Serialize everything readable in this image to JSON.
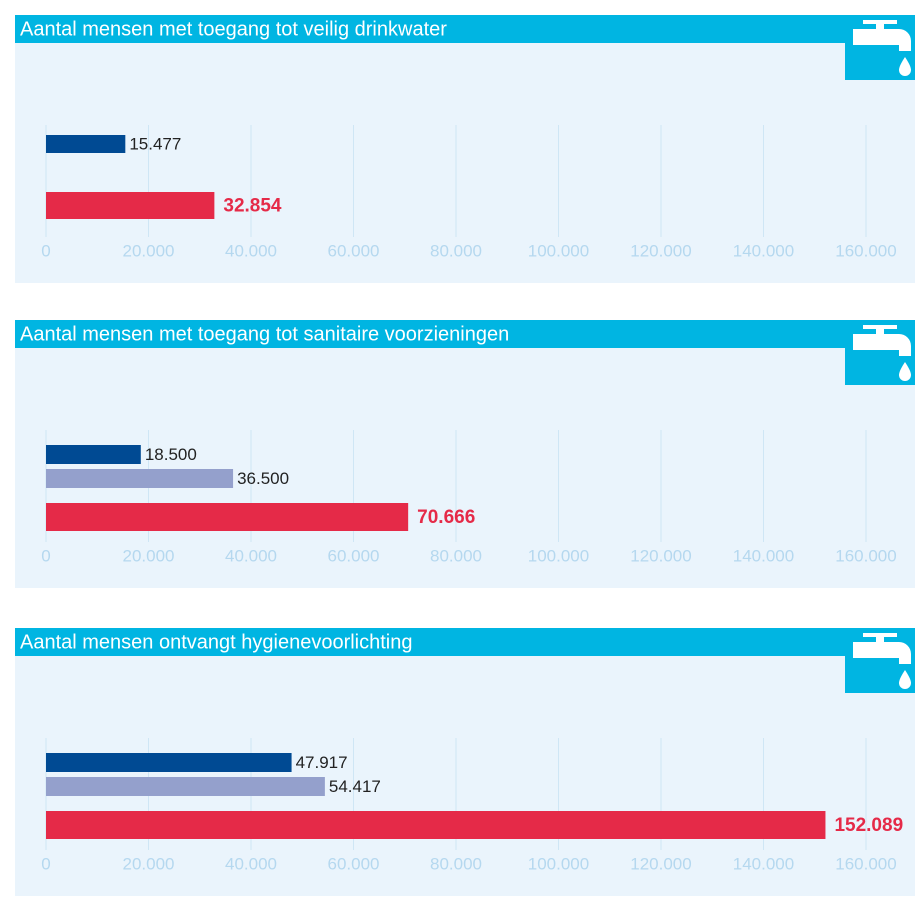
{
  "chart_data": [
    {
      "type": "bar",
      "orientation": "horizontal",
      "title": "Aantal mensen met toegang tot veilig drinkwater",
      "values": [
        15477,
        32854
      ],
      "value_labels": [
        "15.477",
        "32.854"
      ],
      "colors": [
        "#004a93",
        "#e52a48"
      ],
      "xlim": [
        0,
        160000
      ],
      "xticks": [
        0,
        {
          "value": 20000,
          "label": "20.000"
        },
        {
          "value": 40000,
          "label": "40.000"
        },
        {
          "value": 60000,
          "label": "60.000"
        },
        {
          "value": 80000,
          "label": "80.000"
        },
        {
          "value": 100000,
          "label": "100.000"
        },
        {
          "value": 120000,
          "label": "120.000"
        },
        {
          "value": 140000,
          "label": "140.000"
        },
        {
          "value": 160000,
          "label": "160.000"
        }
      ],
      "grid": true
    },
    {
      "type": "bar",
      "orientation": "horizontal",
      "title": "Aantal mensen met toegang tot sanitaire voorzieningen",
      "values": [
        18500,
        36500,
        70666
      ],
      "value_labels": [
        "18.500",
        "36.500",
        "70.666"
      ],
      "colors": [
        "#004a93",
        "#94a0cc",
        "#e52a48"
      ],
      "xlim": [
        0,
        160000
      ],
      "xticks": [
        0,
        {
          "value": 20000,
          "label": "20.000"
        },
        {
          "value": 40000,
          "label": "40.000"
        },
        {
          "value": 60000,
          "label": "60.000"
        },
        {
          "value": 80000,
          "label": "80.000"
        },
        {
          "value": 100000,
          "label": "100.000"
        },
        {
          "value": 120000,
          "label": "120.000"
        },
        {
          "value": 140000,
          "label": "140.000"
        },
        {
          "value": 160000,
          "label": "160.000"
        }
      ],
      "grid": true
    },
    {
      "type": "bar",
      "orientation": "horizontal",
      "title": "Aantal mensen ontvangt hygienevoorlichting",
      "values": [
        47917,
        54417,
        152089
      ],
      "value_labels": [
        "47.917",
        "54.417",
        "152.089"
      ],
      "colors": [
        "#004a93",
        "#94a0cc",
        "#e52a48"
      ],
      "xlim": [
        0,
        160000
      ],
      "xticks": [
        0,
        {
          "value": 20000,
          "label": "20.000"
        },
        {
          "value": 40000,
          "label": "40.000"
        },
        {
          "value": 60000,
          "label": "60.000"
        },
        {
          "value": 80000,
          "label": "80.000"
        },
        {
          "value": 100000,
          "label": "100.000"
        },
        {
          "value": 120000,
          "label": "120.000"
        },
        {
          "value": 140000,
          "label": "140.000"
        },
        {
          "value": 160000,
          "label": "160.000"
        }
      ],
      "grid": true
    }
  ]
}
